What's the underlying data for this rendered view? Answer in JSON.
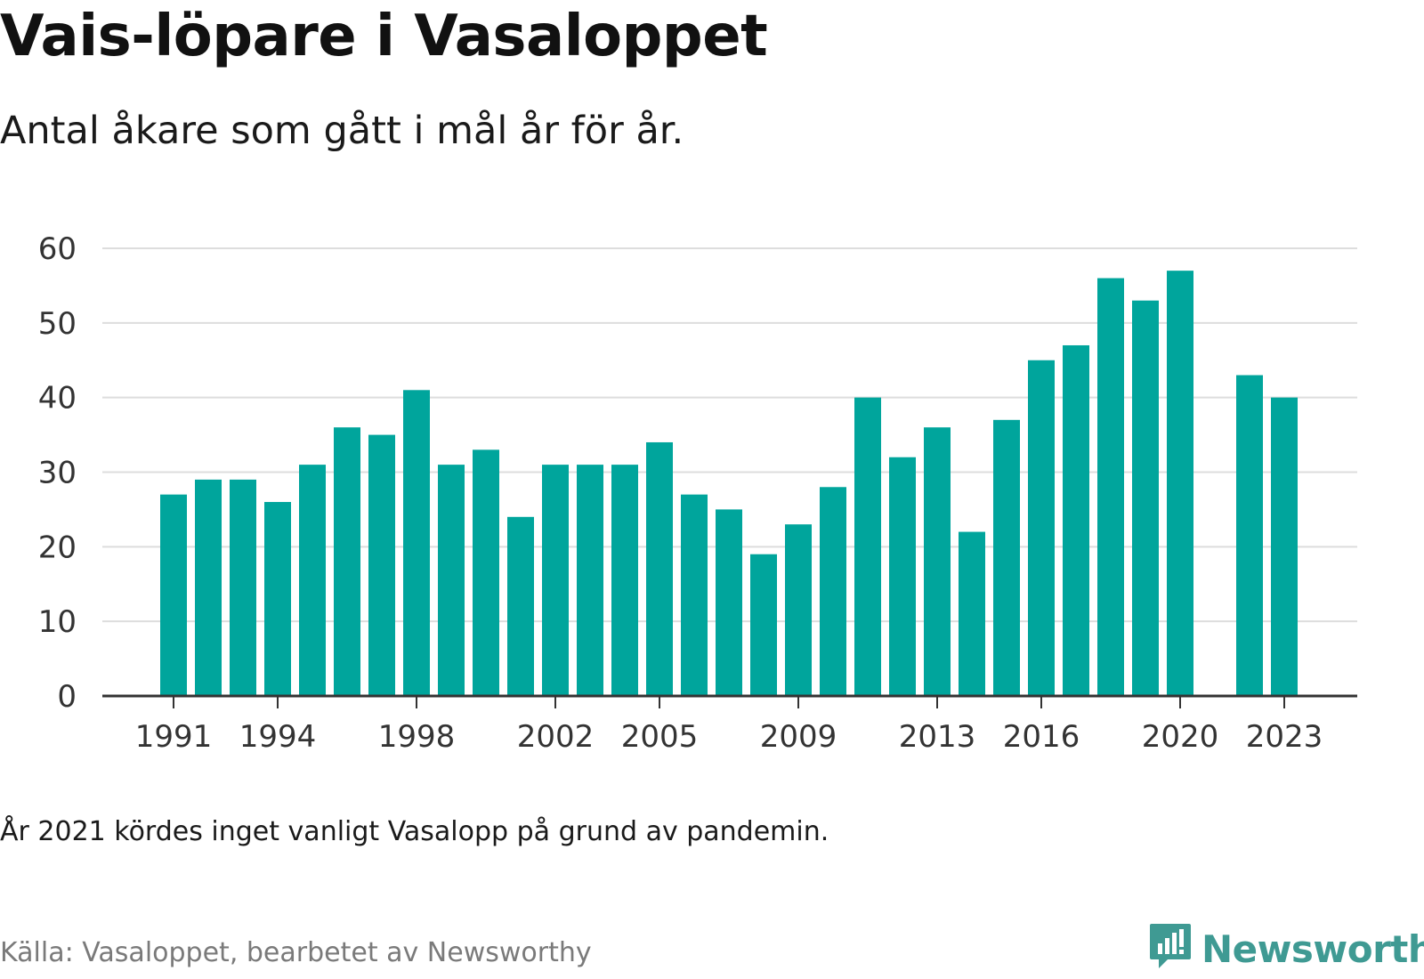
{
  "header": {
    "title": "Vais-löpare i Vasaloppet",
    "subtitle": "Antal åkare som gått i mål år för år."
  },
  "footer": {
    "note": "År 2021 kördes inget vanligt Vasalopp på grund av pandemin.",
    "source": "Källa: Vasaloppet, bearbetet av Newsworthy",
    "brand": "Newsworthy"
  },
  "colors": {
    "bar": "#00a59c",
    "grid": "#dddddd",
    "axis": "#333333",
    "brand": "#3f9a93"
  },
  "chart_data": {
    "type": "bar",
    "title": "Vais-löpare i Vasaloppet",
    "subtitle": "Antal åkare som gått i mål år för år.",
    "xlabel": "",
    "ylabel": "",
    "ylim": [
      0,
      60
    ],
    "yticks": [
      0,
      10,
      20,
      30,
      40,
      50,
      60
    ],
    "grid": true,
    "legend": "none",
    "xticks": [
      "1991",
      "1994",
      "1998",
      "2002",
      "2005",
      "2009",
      "2013",
      "2016",
      "2020",
      "2023"
    ],
    "categories": [
      1991,
      1992,
      1993,
      1994,
      1995,
      1996,
      1997,
      1998,
      1999,
      2000,
      2001,
      2002,
      2003,
      2004,
      2005,
      2006,
      2007,
      2008,
      2009,
      2010,
      2011,
      2012,
      2013,
      2014,
      2015,
      2016,
      2017,
      2018,
      2019,
      2020,
      2021,
      2022,
      2023
    ],
    "values": [
      27,
      29,
      29,
      26,
      31,
      36,
      35,
      41,
      31,
      33,
      24,
      31,
      31,
      31,
      34,
      27,
      25,
      19,
      23,
      28,
      40,
      32,
      36,
      22,
      37,
      45,
      47,
      56,
      53,
      57,
      null,
      43,
      40
    ]
  }
}
